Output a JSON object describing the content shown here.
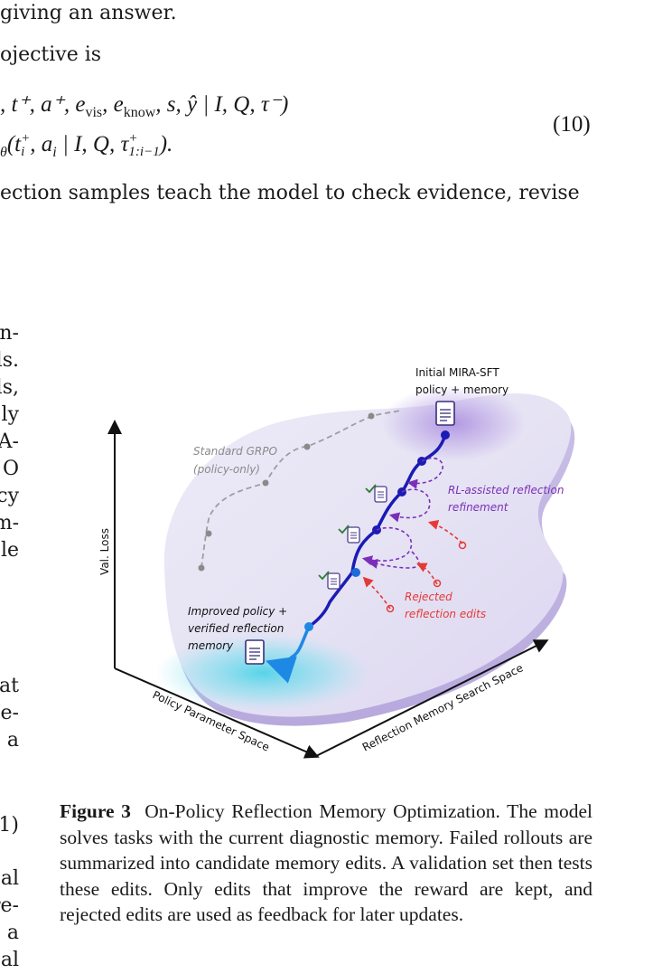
{
  "body_top": {
    "line1": "giving an answer.",
    "line2": "ojective is",
    "eq_line1": ", t⁺, a⁺, e",
    "eq_line1_sub_vis": "vis",
    "eq_line1_mid": ", e",
    "eq_line1_sub_know": "know",
    "eq_line1_end": ", s, ŷ | I, Q, τ⁻)",
    "eq_line2_a": "θ",
    "eq_line2_b": "(t",
    "eq_line2_sup": "+",
    "eq_line2_sub": "i",
    "eq_line2_c": ", a",
    "eq_line2_sub2": "i",
    "eq_line2_d": " | I, Q, τ",
    "eq_line2_sup2": "+",
    "eq_line2_sub3": "1:i−1",
    "eq_line2_e": ").",
    "eq_number": "(10)",
    "line3": "ection samples teach the model to check evidence, revise"
  },
  "left_margin_fragments": [
    "n-",
    "ls.",
    "ls,",
    "ly",
    "A-",
    "O",
    "cy",
    "m-",
    "le",
    "at",
    "ge-",
    "a",
    "1)",
    "al",
    "re-",
    "a",
    "al"
  ],
  "figure": {
    "axis_y_label": "Val. Loss",
    "axis_x_label": "Policy Parameter Space",
    "axis_z_label": "Reflection Memory Search Space",
    "start_label_line1": "Initial MIRA-SFT",
    "start_label_line2": "policy + memory",
    "grpo_label_line1": "Standard GRPO",
    "grpo_label_line2": "(policy-only)",
    "rl_label_line1": "RL-assisted reflection",
    "rl_label_line2": "refinement",
    "rejected_label_line1": "Rejected",
    "rejected_label_line2": "reflection edits",
    "end_label_line1": "Improved policy +",
    "end_label_line2": "verified reflection",
    "end_label_line3": "memory",
    "colors": {
      "main_path": "#1b1bb5",
      "end_path": "#1e88e5",
      "rl_loops": "#7b2fb8",
      "rejected": "#e53935",
      "grpo": "#9e9e9e",
      "check": "#2e7d32"
    }
  },
  "caption": {
    "label": "Figure 3",
    "text": "On-Policy Reflection Memory Optimization. The model solves tasks with the current diagnostic memory. Failed rollouts are summarized into candidate memory edits. A validation set then tests these edits. Only edits that improve the reward are kept, and rejected edits are used as feedback for later updates."
  }
}
